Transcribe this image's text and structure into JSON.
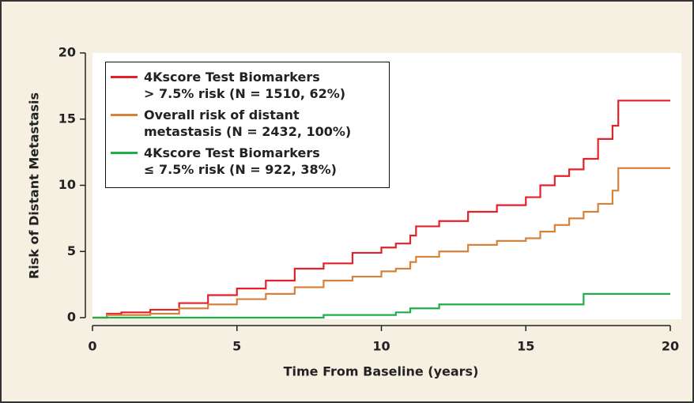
{
  "chart_data": {
    "type": "line",
    "step": true,
    "x_label": "Time From Baseline (years)",
    "y_label": "Risk of Distant Metastasis",
    "x": [
      0,
      0.5,
      1,
      2,
      3,
      4,
      5,
      6,
      7,
      8,
      9,
      10,
      10.5,
      11,
      11.2,
      12,
      13,
      14,
      15,
      15.5,
      16,
      16.5,
      17,
      17.5,
      18,
      18.2,
      20
    ],
    "series": [
      {
        "name": "4Kscore Test Biomarkers\n> 7.5% risk (N = 1510, 62%)",
        "color": "#e4202a",
        "values": [
          0,
          0.3,
          0.4,
          0.6,
          1.1,
          1.7,
          2.2,
          2.8,
          3.7,
          4.1,
          4.9,
          5.3,
          5.6,
          6.2,
          6.9,
          7.3,
          8.0,
          8.5,
          9.1,
          10.0,
          10.7,
          11.2,
          12.0,
          13.5,
          14.5,
          16.4,
          16.4
        ]
      },
      {
        "name": "Overall risk of distant\nmetastasis (N = 2432, 100%)",
        "color": "#d5823c",
        "values": [
          0,
          0.2,
          0.2,
          0.3,
          0.7,
          1.0,
          1.4,
          1.8,
          2.3,
          2.8,
          3.1,
          3.5,
          3.7,
          4.2,
          4.6,
          5.0,
          5.5,
          5.8,
          6.0,
          6.5,
          7.0,
          7.5,
          8.0,
          8.6,
          9.6,
          11.3,
          11.3
        ]
      },
      {
        "name": "4Kscore Test Biomarkers\n≤ 7.5% risk (N = 922, 38%)",
        "color": "#1fae4b",
        "values": [
          0,
          0,
          0,
          0,
          0,
          0,
          0,
          0,
          0,
          0.2,
          0.2,
          0.2,
          0.4,
          0.7,
          0.7,
          1.0,
          1.0,
          1.0,
          1.0,
          1.0,
          1.0,
          1.0,
          1.8,
          1.8,
          1.8,
          1.8,
          1.8
        ]
      }
    ],
    "xlim": [
      0,
      20
    ],
    "xticks": [
      0,
      5,
      10,
      15,
      20
    ],
    "ylim": [
      0,
      20
    ],
    "yticks": [
      0,
      5,
      10,
      15,
      20
    ],
    "legend": "upper-left"
  }
}
